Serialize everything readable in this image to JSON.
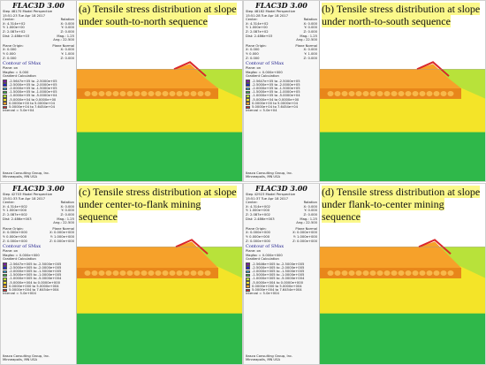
{
  "colors": {
    "purple": "#7a1fa2",
    "blue": "#2424c8",
    "cyan": "#2ea8e0",
    "green": "#2fb84a",
    "lime": "#b8e23a",
    "yellow": "#f4e428",
    "orange": "#f6a12a",
    "darkorange": "#e8861a",
    "red": "#d9262a",
    "caption_highlight": "#fbf88a"
  },
  "quadrants": [
    {
      "caption": "(a) Tensile stress distribution at slope under south-to-north sequence",
      "brand": "FLAC3D 3.00",
      "step": "Step 48170 Model Perspective",
      "time": "15:51:23 Tue Apr 18 2017",
      "center_x": "X: 4.314e+02",
      "center_y": "Y: 1.000e+00",
      "center_z": "Z: 2.087e+02",
      "dist": "Dist: 2.486e+03",
      "rot_x": "X: 0.000",
      "rot_y": "Y: 0.000",
      "rot_z": "Z: 0.000",
      "mag": "Mag.: 1.25",
      "ang": "Ang.: 22.500",
      "origin_x": "X: 0.000",
      "origin_y": "Y: 0.000",
      "origin_z": "Z: 0.000",
      "normal_x": "X: 0.000",
      "normal_y": "Y: 1.000",
      "normal_z": "Z: 0.000",
      "contour_title": "Contour of SMax",
      "plane_on": "Plane: on",
      "magfac": "Magfac = 0.000",
      "gradient": "Gradient Calculation",
      "legend": [
        "-2.5647e+05 to -2.5000e+05",
        "-2.5000e+05 to -2.0000e+05",
        "-2.0000e+05 to -1.5000e+05",
        "-1.5000e+05 to -1.0000e+05",
        "-1.0000e+05 to -5.0000e+04",
        "-5.0000e+04 to  0.0000e+00",
        "0.0000e+00 to  5.0000e+04",
        "5.0000e+04 to  7.6454e+04"
      ],
      "interval": "Interval = 5.0e+04",
      "company": "Itasca Consulting Group, Inc.",
      "city": "Minneapolis, MN  USA"
    },
    {
      "caption": "(b) Tensile stress distribution at slope under north-to-south sequence",
      "brand": "FLAC3D 3.00",
      "step": "Step 48182 Model Perspective",
      "time": "15:51:28 Tue Apr 18 2017",
      "center_x": "X: 4.314e+02",
      "center_y": "Y: 1.000e+00",
      "center_z": "Z: 2.087e+02",
      "dist": "Dist: 2.486e+03",
      "rot_x": "X: 0.000",
      "rot_y": "Y: 0.000",
      "rot_z": "Z: 0.000",
      "mag": "Mag.: 1.25",
      "ang": "Ang.: 22.500",
      "origin_x": "X: 0.000",
      "origin_y": "Y: 0.000",
      "origin_z": "Z: 0.000",
      "normal_x": "X: 0.000",
      "normal_y": "Y: 1.000",
      "normal_z": "Z: 0.000",
      "contour_title": "Contour of SMax",
      "plane_on": "Plane: on",
      "magfac": "Magfac = 0.000e+000",
      "gradient": "Gradient Calculation",
      "legend": [
        "-2.5647e+05 to -2.5000e+05",
        "-2.5000e+05 to -2.0000e+05",
        "-2.0000e+05 to -1.5000e+05",
        "-1.5000e+05 to -1.0000e+05",
        "-1.0000e+05 to -5.0000e+04",
        "-5.0000e+04 to  0.0000e+00",
        "0.0000e+00 to  5.0000e+04",
        "5.0000e+04 to  7.6454e+04"
      ],
      "interval": "Interval = 5.0e+04",
      "company": "Itasca Consulting Group, Inc.",
      "city": "Minneapolis, MN  USA"
    },
    {
      "caption": "(c) Tensile stress distribution at slope under center-to-flank mining sequence",
      "brand": "FLAC3D 3.00",
      "step": "Step 42703 Model Perspective",
      "time": "15:51:33 Tue Apr 18 2017",
      "center_x": "X: 4.314e+002",
      "center_y": "Y: 1.000e+000",
      "center_z": "Z: 2.087e+002",
      "dist": "Dist: 2.486e+003",
      "rot_x": "X: 0.000",
      "rot_y": "Y: 0.000",
      "rot_z": "Z: 0.000",
      "mag": "Mag.: 1.25",
      "ang": "Ang.: 22.500",
      "origin_x": "X: 0.000e+000",
      "origin_y": "Y: 0.000e+000",
      "origin_z": "Z: 0.000e+000",
      "normal_x": "X: 0.000e+000",
      "normal_y": "Y: 1.000e+000",
      "normal_z": "Z: 0.000e+000",
      "contour_title": "Contour of SMax",
      "plane_on": "Plane: on",
      "magfac": "Magfac = 0.000e+000",
      "gradient": "Gradient Calculation",
      "legend": [
        "-2.5647e+005 to -2.5000e+005",
        "-2.5000e+005 to -2.0000e+005",
        "-2.0000e+005 to -1.5000e+005",
        "-1.5000e+005 to -1.0000e+005",
        "-1.0000e+005 to -5.0000e+004",
        "-5.0000e+004 to  0.0000e+000",
        "0.0000e+000 to  5.0000e+004",
        "5.0000e+004 to  7.6454e+004"
      ],
      "interval": "Interval = 5.0e+004",
      "company": "Itasca Consulting Group, Inc.",
      "city": "Minneapolis, MN  USA"
    },
    {
      "caption": "(d) Tensile stress distribution at slope under flank-to-center mining sequence",
      "brand": "FLAC3D 3.00",
      "step": "Step 42923 Model Perspective",
      "time": "15:51:37 Tue Apr 18 2017",
      "center_x": "X: 4.314e+002",
      "center_y": "Y: 1.000e+000",
      "center_z": "Z: 2.087e+002",
      "dist": "Dist: 2.486e+003",
      "rot_x": "X: 0.000",
      "rot_y": "Y: 0.000",
      "rot_z": "Z: 0.000",
      "mag": "Mag.: 1.25",
      "ang": "Ang.: 22.500",
      "origin_x": "X: 0.000e+000",
      "origin_y": "Y: 0.000e+000",
      "origin_z": "Z: 0.000e+000",
      "normal_x": "X: 0.000e+000",
      "normal_y": "Y: 1.000e+000",
      "normal_z": "Z: 0.000e+000",
      "contour_title": "Contour of SMax",
      "plane_on": "Plane: on",
      "magfac": "Magfac = 0.000e+000",
      "gradient": "Gradient Calculation",
      "legend": [
        "-2.5646e+005 to -2.5000e+005",
        "-2.5000e+005 to -2.0000e+005",
        "-2.0000e+005 to -1.5000e+005",
        "-1.5000e+005 to -1.0000e+005",
        "-1.0000e+005 to -5.0000e+004",
        "-5.0000e+004 to  0.0000e+000",
        "0.0000e+000 to  5.0000e+004",
        "5.0000e+004 to  7.6454e+004"
      ],
      "interval": "Interval = 5.0e+004",
      "company": "Itasca Consulting Group, Inc.",
      "city": "Minneapolis, MN  USA"
    }
  ],
  "labels": {
    "center": "Center:",
    "rotation": "Rotation",
    "plane_origin": "Plane Origin:",
    "plane_normal": "Plane Normal"
  }
}
